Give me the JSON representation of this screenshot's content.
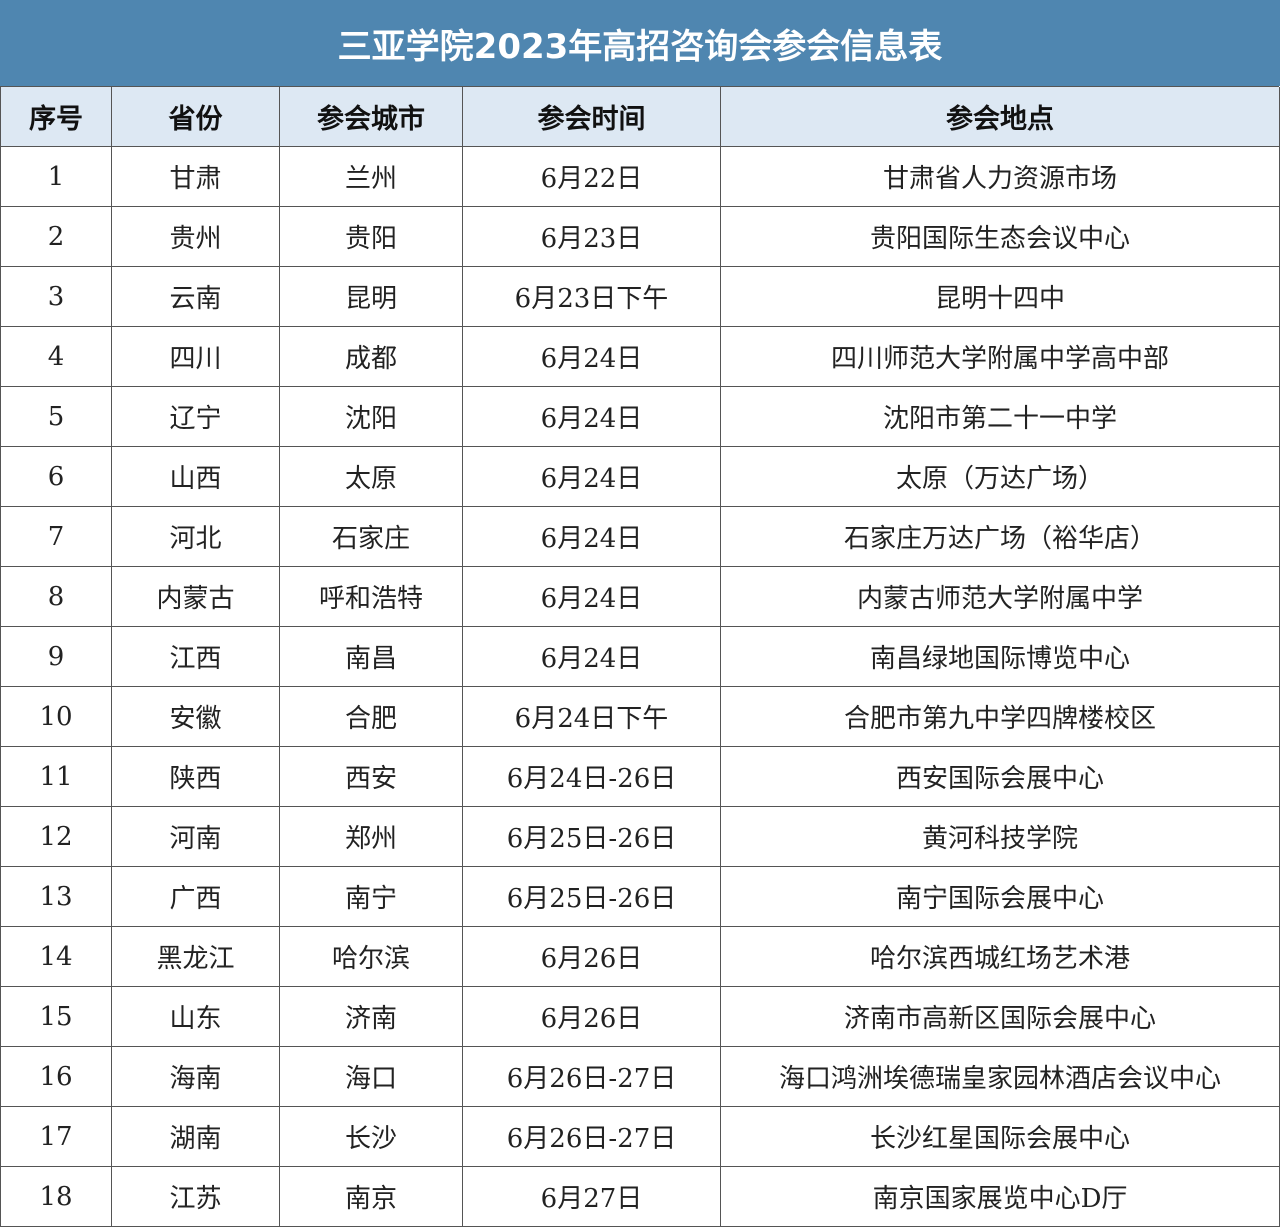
{
  "header": {
    "title": "三亚学院2023年高招咨询会参会信息表"
  },
  "table": {
    "columns": [
      "序号",
      "省份",
      "参会城市",
      "参会时间",
      "参会地点"
    ],
    "rows": [
      [
        "1",
        "甘肃",
        "兰州",
        "6月22日",
        "甘肃省人力资源市场"
      ],
      [
        "2",
        "贵州",
        "贵阳",
        "6月23日",
        "贵阳国际生态会议中心"
      ],
      [
        "3",
        "云南",
        "昆明",
        "6月23日下午",
        "昆明十四中"
      ],
      [
        "4",
        "四川",
        "成都",
        "6月24日",
        "四川师范大学附属中学高中部"
      ],
      [
        "5",
        "辽宁",
        "沈阳",
        "6月24日",
        "沈阳市第二十一中学"
      ],
      [
        "6",
        "山西",
        "太原",
        "6月24日",
        "太原（万达广场）"
      ],
      [
        "7",
        "河北",
        "石家庄",
        "6月24日",
        "石家庄万达广场（裕华店）"
      ],
      [
        "8",
        "内蒙古",
        "呼和浩特",
        "6月24日",
        "内蒙古师范大学附属中学"
      ],
      [
        "9",
        "江西",
        "南昌",
        "6月24日",
        "南昌绿地国际博览中心"
      ],
      [
        "10",
        "安徽",
        "合肥",
        "6月24日下午",
        "合肥市第九中学四牌楼校区"
      ],
      [
        "11",
        "陕西",
        "西安",
        "6月24日-26日",
        "西安国际会展中心"
      ],
      [
        "12",
        "河南",
        "郑州",
        "6月25日-26日",
        "黄河科技学院"
      ],
      [
        "13",
        "广西",
        "南宁",
        "6月25日-26日",
        "南宁国际会展中心"
      ],
      [
        "14",
        "黑龙江",
        "哈尔滨",
        "6月26日",
        "哈尔滨西城红场艺术港"
      ],
      [
        "15",
        "山东",
        "济南",
        "6月26日",
        "济南市高新区国际会展中心"
      ],
      [
        "16",
        "海南",
        "海口",
        "6月26日-27日",
        "海口鸿洲埃德瑞皇家园林酒店会议中心"
      ],
      [
        "17",
        "湖南",
        "长沙",
        "6月26日-27日",
        "长沙红星国际会展中心"
      ],
      [
        "18",
        "江苏",
        "南京",
        "6月27日",
        "南京国家展览中心D厅"
      ]
    ]
  }
}
